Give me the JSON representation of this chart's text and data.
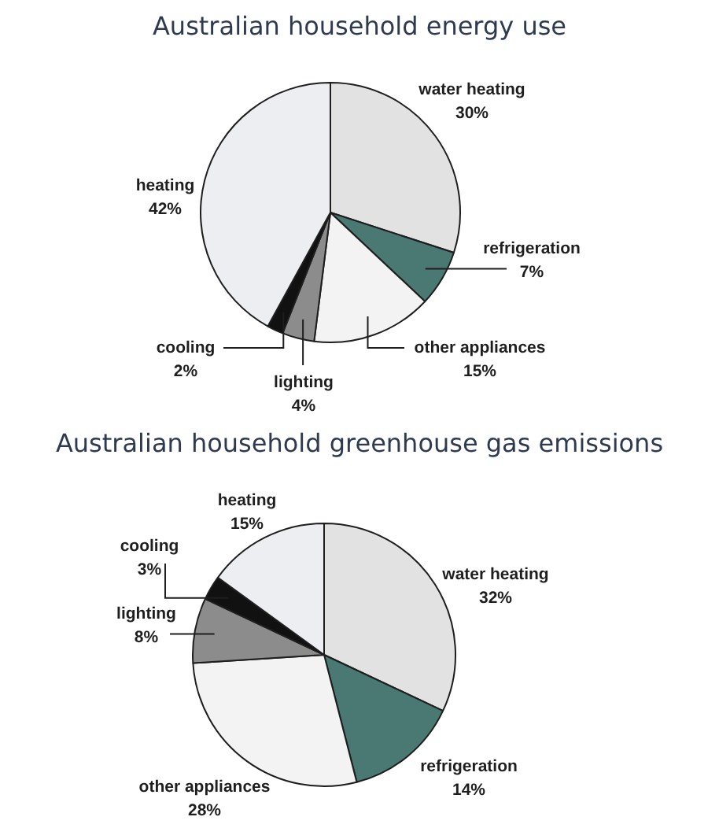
{
  "chart_data": [
    {
      "type": "pie",
      "title": "Australian household energy use",
      "categories": [
        "water heating",
        "refrigeration",
        "other appliances",
        "lighting",
        "cooling",
        "heating"
      ],
      "values": [
        30,
        7,
        15,
        4,
        2,
        42
      ],
      "value_labels": [
        "30%",
        "7%",
        "15%",
        "4%",
        "2%",
        "42%"
      ],
      "colors": [
        "#e2e2e2",
        "#4a7873",
        "#f3f3f3",
        "#8c8c8c",
        "#111111",
        "#eceef2"
      ],
      "legend": false
    },
    {
      "type": "pie",
      "title": "Australian household greenhouse gas emissions",
      "categories": [
        "water heating",
        "refrigeration",
        "other appliances",
        "lighting",
        "cooling",
        "heating"
      ],
      "values": [
        32,
        14,
        28,
        8,
        3,
        15
      ],
      "value_labels": [
        "32%",
        "14%",
        "28%",
        "8%",
        "3%",
        "15%"
      ],
      "colors": [
        "#e2e2e2",
        "#4a7873",
        "#f3f3f3",
        "#8c8c8c",
        "#111111",
        "#eceef2"
      ],
      "legend": false
    }
  ]
}
